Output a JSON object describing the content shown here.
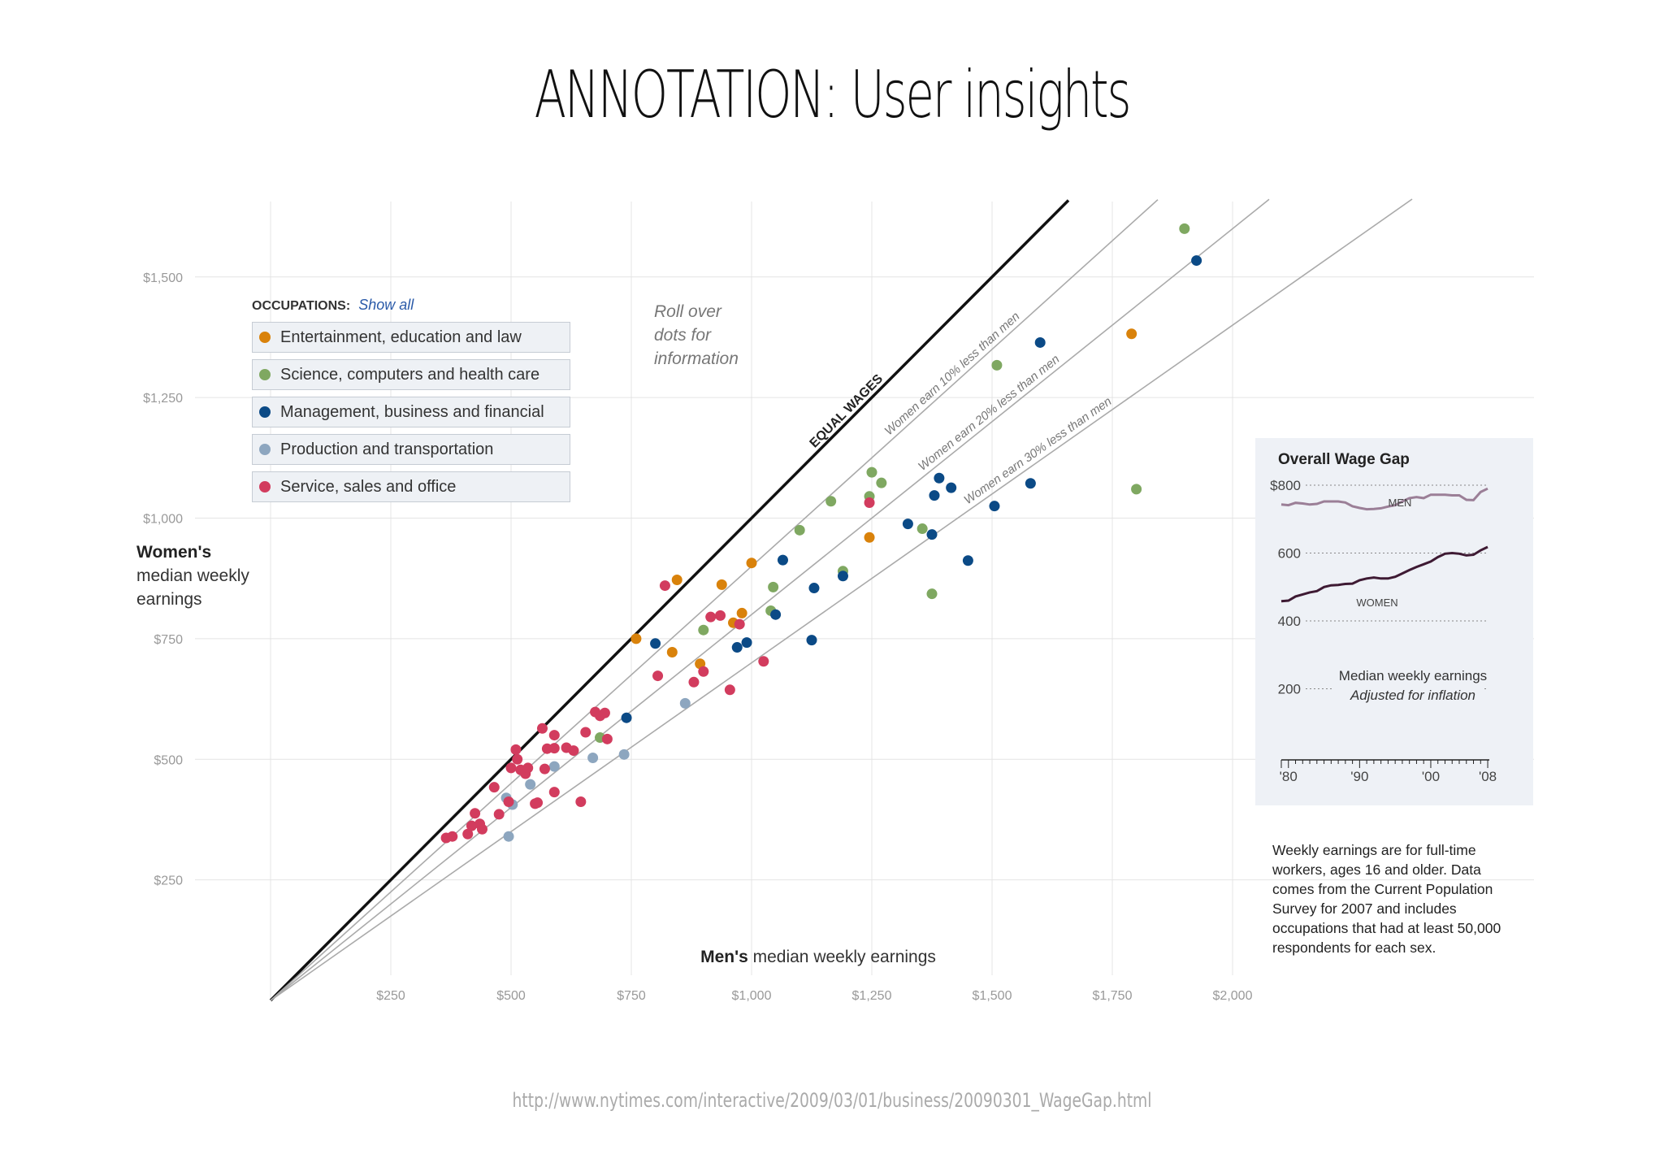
{
  "slide": {
    "title": "ANNOTATION: User insights",
    "source_url": "http://www.nytimes.com/interactive/2009/03/01/business/20090301_WageGap.html"
  },
  "legend": {
    "header": "OCCUPATIONS:",
    "show_all": "Show all",
    "items": [
      {
        "label": "Entertainment, education and law",
        "color": "#d9820b"
      },
      {
        "label": "Science, computers and health care",
        "color": "#7fa861"
      },
      {
        "label": "Management, business and financial",
        "color": "#0b4a86"
      },
      {
        "label": "Production and transportation",
        "color": "#8da6bf"
      },
      {
        "label": "Service, sales and office",
        "color": "#d23c5e"
      }
    ]
  },
  "annotation": {
    "rollover_lines": [
      "Roll over",
      "dots for",
      "information"
    ]
  },
  "footnote": "Weekly earnings are for full-time workers, ages 16 and older. Data comes from the Current Population Survey for 2007 and includes occupations that had at least 50,000 respondents for each sex.",
  "chart_data": [
    {
      "type": "scatter",
      "title": "",
      "xlabel_bold": "Men's",
      "xlabel_rest": " median weekly earnings",
      "ylabel_bold": "Women's",
      "ylabel_lines": [
        "median weekly",
        "earnings"
      ],
      "xlim": [
        0,
        2050
      ],
      "ylim": [
        0,
        1650
      ],
      "x_ticks": [
        250,
        500,
        750,
        1000,
        1250,
        1500,
        1750,
        2000
      ],
      "x_tick_labels": [
        "$250",
        "$500",
        "$750",
        "$1,000",
        "$1,250",
        "$1,500",
        "$1,750",
        "$2,000"
      ],
      "y_ticks": [
        250,
        500,
        750,
        1000,
        1250,
        1500
      ],
      "y_tick_labels": [
        "$250",
        "$500",
        "$750",
        "$1,000",
        "$1,250",
        "$1,500"
      ],
      "grid": true,
      "reference_lines": [
        {
          "ratio": 1.0,
          "label": "EQUAL WAGES"
        },
        {
          "ratio": 0.9,
          "label": "Women earn 10% less than men"
        },
        {
          "ratio": 0.8,
          "label": "Women earn 20% less than men"
        },
        {
          "ratio": 0.7,
          "label": "Women earn 30% less than men"
        }
      ],
      "series": [
        {
          "name": "Entertainment, education and law",
          "color": "#d9820b",
          "points": [
            [
              760,
              750
            ],
            [
              845,
              872
            ],
            [
              835,
              722
            ],
            [
              938,
              862
            ],
            [
              893,
              698
            ],
            [
              962,
              783
            ],
            [
              980,
              803
            ],
            [
              1000,
              907
            ],
            [
              1245,
              960
            ],
            [
              1790,
              1382
            ]
          ]
        },
        {
          "name": "Science, computers and health care",
          "color": "#7fa861",
          "points": [
            [
              685,
              545
            ],
            [
              900,
              768
            ],
            [
              1040,
              808
            ],
            [
              1045,
              857
            ],
            [
              1100,
              975
            ],
            [
              1165,
              1035
            ],
            [
              1190,
              890
            ],
            [
              1245,
              1045
            ],
            [
              1250,
              1095
            ],
            [
              1270,
              1073
            ],
            [
              1355,
              978
            ],
            [
              1375,
              843
            ],
            [
              1510,
              1317
            ],
            [
              1800,
              1060
            ],
            [
              1900,
              1600
            ]
          ]
        },
        {
          "name": "Management, business and financial",
          "color": "#0b4a86",
          "points": [
            [
              740,
              586
            ],
            [
              800,
              740
            ],
            [
              970,
              732
            ],
            [
              990,
              742
            ],
            [
              1050,
              800
            ],
            [
              1065,
              913
            ],
            [
              1125,
              747
            ],
            [
              1130,
              855
            ],
            [
              1190,
              880
            ],
            [
              1325,
              988
            ],
            [
              1375,
              966
            ],
            [
              1380,
              1047
            ],
            [
              1390,
              1083
            ],
            [
              1415,
              1063
            ],
            [
              1450,
              912
            ],
            [
              1505,
              1025
            ],
            [
              1580,
              1072
            ],
            [
              1600,
              1364
            ],
            [
              1925,
              1534
            ]
          ]
        },
        {
          "name": "Production and transportation",
          "color": "#8da6bf",
          "points": [
            [
              490,
              420
            ],
            [
              495,
              340
            ],
            [
              503,
              406
            ],
            [
              540,
              448
            ],
            [
              590,
              485
            ],
            [
              670,
              503
            ],
            [
              735,
              510
            ],
            [
              862,
              616
            ]
          ]
        },
        {
          "name": "Service, sales and office",
          "color": "#d23c5e",
          "points": [
            [
              365,
              337
            ],
            [
              378,
              340
            ],
            [
              410,
              345
            ],
            [
              418,
              362
            ],
            [
              425,
              388
            ],
            [
              435,
              366
            ],
            [
              440,
              355
            ],
            [
              465,
              442
            ],
            [
              475,
              386
            ],
            [
              495,
              412
            ],
            [
              500,
              482
            ],
            [
              510,
              520
            ],
            [
              513,
              500
            ],
            [
              520,
              478
            ],
            [
              530,
              470
            ],
            [
              535,
              482
            ],
            [
              550,
              408
            ],
            [
              555,
              410
            ],
            [
              565,
              564
            ],
            [
              570,
              480
            ],
            [
              575,
              522
            ],
            [
              590,
              432
            ],
            [
              590,
              523
            ],
            [
              590,
              550
            ],
            [
              615,
              524
            ],
            [
              630,
              518
            ],
            [
              645,
              412
            ],
            [
              655,
              556
            ],
            [
              675,
              598
            ],
            [
              685,
              590
            ],
            [
              695,
              596
            ],
            [
              700,
              542
            ],
            [
              805,
              673
            ],
            [
              820,
              860
            ],
            [
              880,
              660
            ],
            [
              900,
              682
            ],
            [
              915,
              795
            ],
            [
              935,
              798
            ],
            [
              955,
              644
            ],
            [
              975,
              780
            ],
            [
              1025,
              703
            ],
            [
              1245,
              1032
            ]
          ]
        }
      ]
    },
    {
      "type": "line",
      "title": "Overall Wage Gap",
      "note_lines": [
        "Median weekly earnings",
        "Adjusted for inflation"
      ],
      "x_ticks": [
        1980,
        1990,
        2000,
        2008
      ],
      "x_tick_labels": [
        "'80",
        "'90",
        "'00",
        "'08"
      ],
      "y_ticks": [
        200,
        400,
        600,
        800
      ],
      "y_tick_labels": [
        "200",
        "400",
        "600",
        "$800"
      ],
      "ylim": [
        0,
        800
      ],
      "x": [
        1979,
        1980,
        1981,
        1982,
        1983,
        1984,
        1985,
        1986,
        1987,
        1988,
        1989,
        1990,
        1991,
        1992,
        1993,
        1994,
        1995,
        1996,
        1997,
        1998,
        1999,
        2000,
        2001,
        2002,
        2003,
        2004,
        2005,
        2006,
        2007,
        2008
      ],
      "series": [
        {
          "name": "MEN",
          "color": "#9b7f97",
          "values": [
            743,
            741,
            748,
            746,
            743,
            745,
            752,
            752,
            752,
            749,
            738,
            733,
            729,
            730,
            732,
            737,
            741,
            752,
            762,
            765,
            762,
            772,
            772,
            772,
            770,
            770,
            757,
            756,
            780,
            790
          ]
        },
        {
          "name": "WOMEN",
          "color": "#3e1a33",
          "values": [
            458,
            460,
            472,
            478,
            484,
            488,
            500,
            505,
            506,
            509,
            510,
            520,
            525,
            528,
            525,
            525,
            530,
            540,
            550,
            559,
            567,
            575,
            588,
            598,
            600,
            598,
            593,
            595,
            608,
            618
          ]
        }
      ]
    }
  ]
}
